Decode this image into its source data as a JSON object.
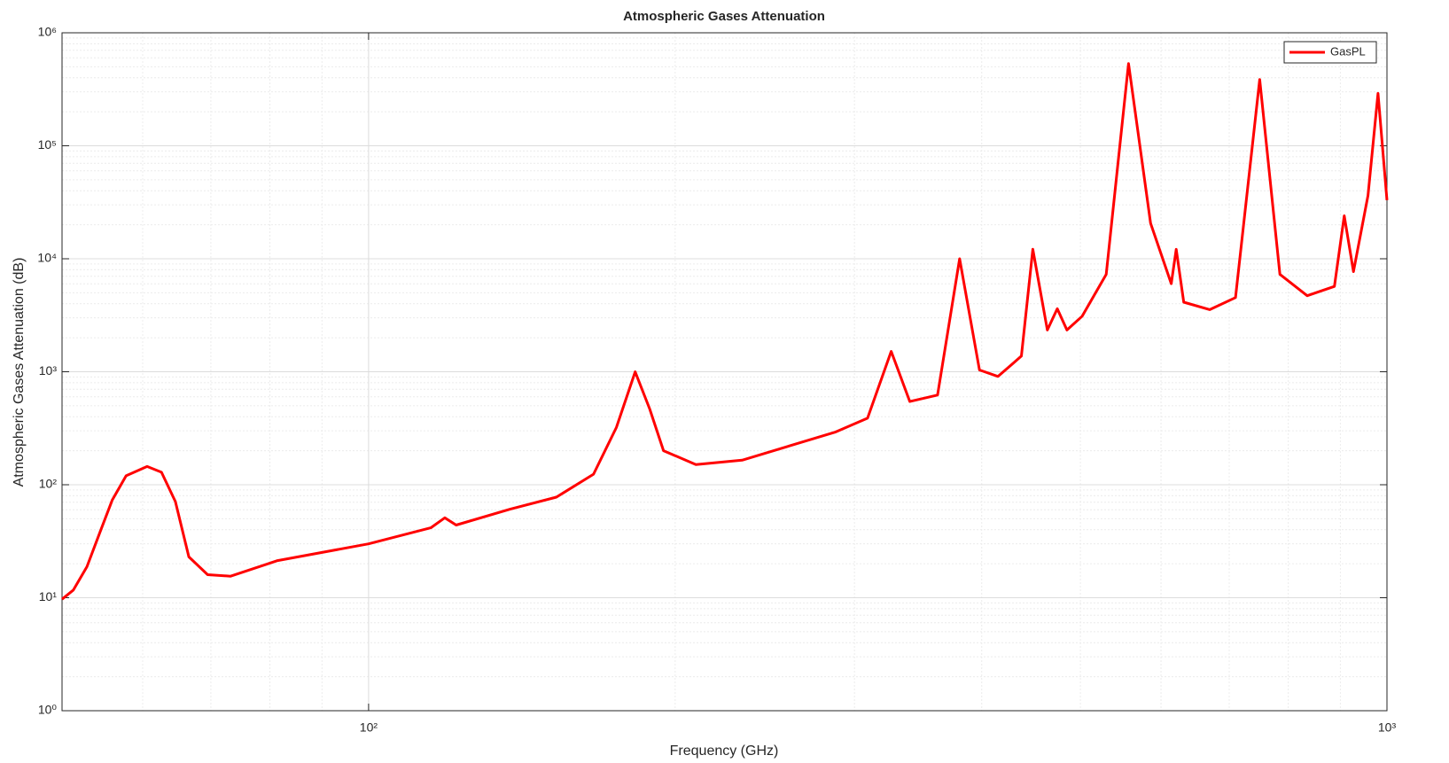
{
  "chart_data": {
    "type": "line",
    "title": "Atmospheric Gases Attenuation",
    "x_label": "Frequency (GHz)",
    "y_label": "Atmospheric Gases Attenuation (dB)",
    "x": [
      50,
      51.3,
      52.9,
      54.6,
      56,
      57.8,
      60.6,
      62.6,
      64.6,
      66.6,
      69.5,
      73.2,
      81.4,
      100,
      115.1,
      118.8,
      121.9,
      137.7,
      152.9,
      166.3,
      175.1,
      182.7,
      188.8,
      194.8,
      209.6,
      232.7,
      287.1,
      309,
      326,
      340,
      362,
      380.5,
      398,
      415,
      437.5,
      449,
      464,
      474.5,
      485,
      502,
      530,
      557.5,
      586,
      614,
      621,
      631.6,
      670,
      710,
      750,
      785,
      835,
      888,
      908,
      927,
      958,
      980,
      1000
    ],
    "series": [
      {
        "name": "GasPL",
        "color": "#ff0000",
        "values": [
          9.7,
          11.7,
          18.8,
          40,
          73,
          120,
          145,
          129,
          71,
          23,
          16,
          15.5,
          21.3,
          30,
          41.6,
          51,
          44,
          60.7,
          77.6,
          124,
          321,
          998,
          468,
          200,
          151,
          165,
          292,
          388,
          1514,
          545,
          622,
          10000,
          1037,
          908,
          1377,
          12130,
          2339,
          3614,
          2339,
          3105,
          7280,
          533000,
          20600,
          6025,
          12130,
          4125,
          3545,
          4530,
          386000,
          7280,
          4710,
          5690,
          24000,
          7700,
          36300,
          291000,
          33000
        ]
      }
    ],
    "xlim": [
      50,
      1000
    ],
    "ylim": [
      1,
      1000000
    ],
    "log_x": true,
    "log_y": true,
    "grid": true,
    "legend": "northeast",
    "xticks": [
      {
        "value": 100,
        "label": "10²"
      },
      {
        "value": 1000,
        "label": "10³"
      }
    ],
    "yticks": [
      {
        "value": 1,
        "label": "10⁰"
      },
      {
        "value": 10,
        "label": "10¹"
      },
      {
        "value": 100,
        "label": "10²"
      },
      {
        "value": 1000,
        "label": "10³"
      },
      {
        "value": 10000,
        "label": "10⁴"
      },
      {
        "value": 100000,
        "label": "10⁵"
      },
      {
        "value": 1000000,
        "label": "10⁶"
      }
    ]
  }
}
